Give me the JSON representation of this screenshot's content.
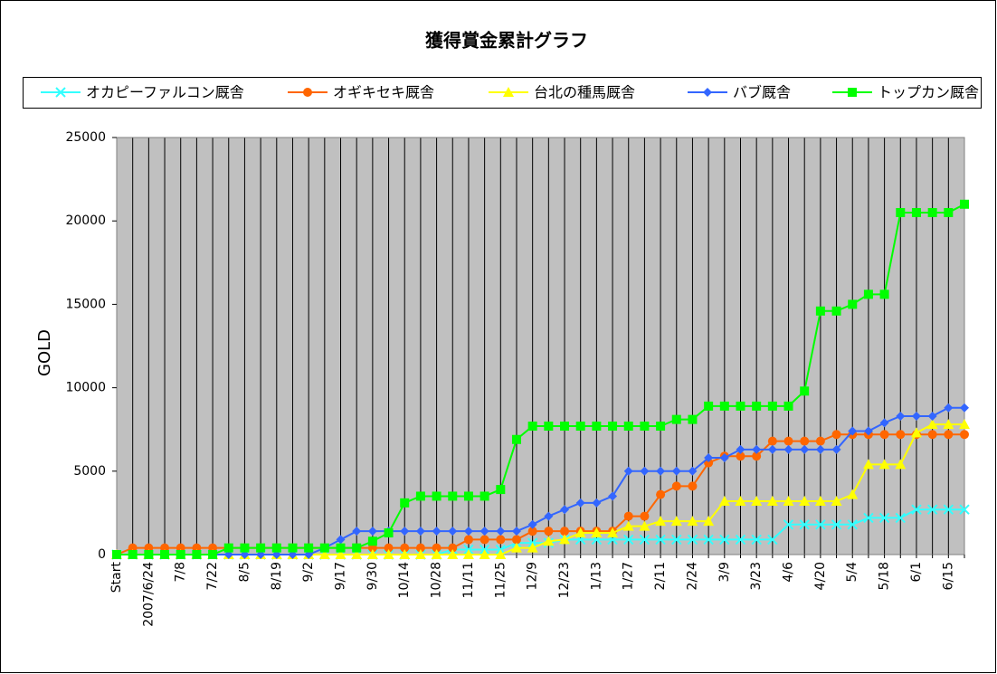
{
  "chart_data": {
    "type": "line",
    "title": "獲得賞金累計グラフ",
    "y_label": "GOLD",
    "categories": [
      "Start",
      null,
      "2007/6/24",
      null,
      "7/8",
      null,
      "7/22",
      null,
      "8/5",
      null,
      "8/19",
      null,
      "9/2",
      null,
      "9/17",
      null,
      "9/30",
      null,
      "10/14",
      null,
      "10/28",
      null,
      "11/11",
      null,
      "11/25",
      null,
      "12/9",
      null,
      "12/23",
      null,
      "1/13",
      null,
      "1/27",
      null,
      "2/11",
      null,
      "2/24",
      null,
      "3/9",
      null,
      "3/23",
      null,
      "4/6",
      null,
      "4/20",
      null,
      "5/4",
      null,
      "5/18",
      null,
      "6/1",
      null,
      "6/15",
      null
    ],
    "ylim": [
      0,
      25000
    ],
    "yticks": [
      0,
      5000,
      10000,
      15000,
      20000,
      25000
    ],
    "grid": "x",
    "series": [
      {
        "name": "オカピーファルコン厩舎",
        "color": "#33ffff",
        "marker": "x",
        "values": [
          0,
          0,
          0,
          0,
          0,
          0,
          0,
          0,
          0,
          0,
          0,
          0,
          0,
          0,
          0,
          0,
          0,
          0,
          0,
          0,
          0,
          300,
          300,
          300,
          300,
          700,
          700,
          700,
          900,
          900,
          900,
          900,
          900,
          900,
          900,
          900,
          900,
          900,
          900,
          900,
          900,
          900,
          1800,
          1800,
          1800,
          1800,
          1800,
          2200,
          2200,
          2200,
          2700,
          2700,
          2700,
          2700
        ]
      },
      {
        "name": "オギキセキ厩舎",
        "color": "#ff6600",
        "marker": "circle",
        "values": [
          0,
          400,
          400,
          400,
          400,
          400,
          400,
          400,
          400,
          400,
          400,
          400,
          400,
          400,
          400,
          400,
          400,
          400,
          400,
          400,
          400,
          400,
          900,
          900,
          900,
          900,
          1400,
          1400,
          1400,
          1400,
          1400,
          1400,
          2300,
          2300,
          3600,
          4100,
          4100,
          5500,
          5900,
          5900,
          5900,
          6800,
          6800,
          6800,
          6800,
          7200,
          7200,
          7200,
          7200,
          7200,
          7200,
          7200,
          7200,
          7200
        ]
      },
      {
        "name": "台北の種馬厩舎",
        "color": "#ffff00",
        "marker": "triangle",
        "values": [
          0,
          0,
          0,
          0,
          0,
          0,
          0,
          0,
          0,
          0,
          0,
          0,
          0,
          0,
          0,
          0,
          0,
          0,
          0,
          0,
          0,
          0,
          0,
          0,
          0,
          400,
          400,
          800,
          900,
          1300,
          1300,
          1300,
          1700,
          1700,
          2000,
          2000,
          2000,
          2000,
          3200,
          3200,
          3200,
          3200,
          3200,
          3200,
          3200,
          3200,
          3600,
          5400,
          5400,
          5400,
          7300,
          7800,
          7800,
          7800
        ]
      },
      {
        "name": "バブ厩舎",
        "color": "#3366ff",
        "marker": "diamond",
        "values": [
          0,
          0,
          0,
          0,
          0,
          0,
          0,
          0,
          0,
          0,
          0,
          0,
          0,
          400,
          900,
          1400,
          1400,
          1400,
          1400,
          1400,
          1400,
          1400,
          1400,
          1400,
          1400,
          1400,
          1800,
          2300,
          2700,
          3100,
          3100,
          3500,
          5000,
          5000,
          5000,
          5000,
          5000,
          5800,
          5800,
          6300,
          6300,
          6300,
          6300,
          6300,
          6300,
          6300,
          7400,
          7400,
          7900,
          8300,
          8300,
          8300,
          8800,
          8800
        ]
      },
      {
        "name": "トップカン厩舎",
        "color": "#00ff00",
        "marker": "square",
        "values": [
          0,
          0,
          0,
          0,
          0,
          0,
          0,
          400,
          400,
          400,
          400,
          400,
          400,
          400,
          400,
          400,
          800,
          1300,
          3100,
          3500,
          3500,
          3500,
          3500,
          3500,
          3900,
          6900,
          7700,
          7700,
          7700,
          7700,
          7700,
          7700,
          7700,
          7700,
          7700,
          8100,
          8100,
          8900,
          8900,
          8900,
          8900,
          8900,
          8900,
          9800,
          14600,
          14600,
          15000,
          15600,
          15600,
          20500,
          20500,
          20500,
          20500,
          21000
        ]
      }
    ]
  }
}
